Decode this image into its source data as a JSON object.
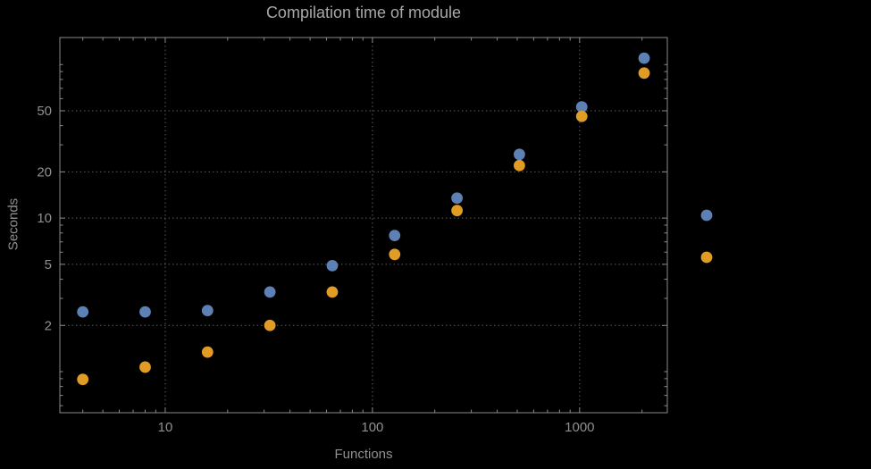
{
  "chart_data": {
    "type": "scatter",
    "title": "Compilation time of module",
    "xlabel": "Functions",
    "ylabel": "Seconds",
    "x_scale": "log",
    "y_scale": "log",
    "xlim": [
      3.1,
      2650
    ],
    "ylim": [
      0.54,
      150
    ],
    "x_ticks": [
      10,
      100,
      1000
    ],
    "y_ticks": [
      2,
      5,
      10,
      20,
      50
    ],
    "grid": true,
    "grid_style": "dotted",
    "x": [
      4,
      8,
      16,
      32,
      64,
      128,
      256,
      512,
      1024,
      2048
    ],
    "series": [
      {
        "name": "series-1-blue",
        "color": "#5e81b5",
        "values": [
          2.45,
          2.45,
          2.5,
          3.3,
          4.9,
          7.7,
          13.5,
          26,
          53,
          110
        ]
      },
      {
        "name": "series-2-orange",
        "color": "#e09c24",
        "values": [
          0.89,
          1.07,
          1.34,
          2.0,
          3.3,
          5.8,
          11.2,
          22,
          46,
          88
        ]
      }
    ],
    "legend": {
      "position": "right-center",
      "entries": [
        {
          "label": "",
          "color": "#5e81b5"
        },
        {
          "label": "",
          "color": "#e09c24"
        }
      ]
    }
  },
  "colors": {
    "background": "#000000",
    "frame": "#8a8a8a",
    "grid": "#5c5c5c",
    "tick_label": "#909090",
    "title": "#a8a8a8",
    "axis_label": "#909090"
  }
}
